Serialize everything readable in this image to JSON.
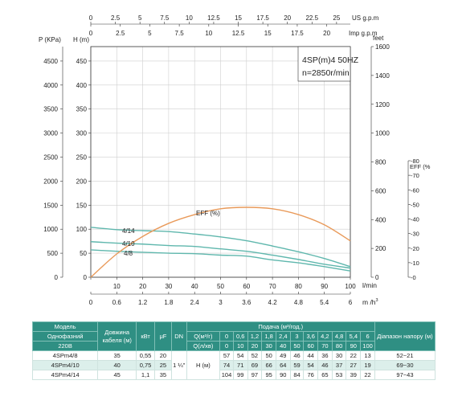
{
  "chart_data": {
    "type": "line",
    "title": "4SP(m)4  50HZ",
    "subtitle": "n=2850r/min",
    "x_axis_bottom": {
      "label": "l/min",
      "ticks": [
        0,
        10,
        20,
        30,
        40,
        50,
        60,
        70,
        80,
        90,
        100
      ],
      "range": [
        0,
        100
      ]
    },
    "x_axis_m3h": {
      "label": "m /h",
      "ticks": [
        "0",
        "0.6",
        "1.2",
        "1.8",
        "2.4",
        "3",
        "3.6",
        "4.2",
        "4.8",
        "5.4",
        "6"
      ]
    },
    "x_axis_us": {
      "label": "US g.p.m",
      "ticks": [
        "0",
        "2.5",
        "5",
        "7.5",
        "10",
        "12.5",
        "15",
        "17.5",
        "20",
        "22.5",
        "25"
      ]
    },
    "x_axis_imp": {
      "label": "Imp g.p.m",
      "ticks": [
        "0",
        "2.5",
        "5",
        "7.5",
        "10",
        "12.5",
        "15",
        "17.5",
        "20"
      ]
    },
    "y_axis_head": {
      "label": "H (m)",
      "ticks": [
        0,
        50,
        100,
        150,
        200,
        250,
        300,
        350,
        400,
        450
      ],
      "range": [
        0,
        480
      ]
    },
    "y_axis_pressure": {
      "label": "P (KPa)",
      "ticks": [
        0,
        500,
        1000,
        1500,
        2000,
        2500,
        3000,
        3500,
        4000,
        4500
      ]
    },
    "y_axis_feet": {
      "label": "feet",
      "ticks": [
        0,
        200,
        400,
        600,
        800,
        1000,
        1200,
        1400,
        1600
      ]
    },
    "y_axis_eff": {
      "label": "EFF (%",
      "ticks": [
        0,
        10,
        20,
        30,
        40,
        50,
        60,
        70,
        80
      ],
      "range": [
        0,
        80
      ]
    },
    "series": [
      {
        "name": "4/14",
        "x": [
          0,
          10,
          20,
          30,
          40,
          50,
          60,
          70,
          80,
          90,
          100
        ],
        "y": [
          104,
          99,
          97,
          95,
          90,
          84,
          76,
          65,
          53,
          39,
          22
        ],
        "color": "#5fb7ad"
      },
      {
        "name": "4/10",
        "x": [
          0,
          10,
          20,
          30,
          40,
          50,
          60,
          70,
          80,
          90,
          100
        ],
        "y": [
          74,
          71,
          69,
          66,
          64,
          59,
          54,
          46,
          37,
          27,
          19
        ],
        "color": "#5fb7ad"
      },
      {
        "name": "4/8",
        "x": [
          0,
          10,
          20,
          30,
          40,
          50,
          60,
          70,
          80,
          90,
          100
        ],
        "y": [
          57,
          54,
          52,
          50,
          49,
          46,
          44,
          36,
          30,
          22,
          13
        ],
        "color": "#5fb7ad"
      },
      {
        "name": "EFF (%)",
        "axis": "eff",
        "x": [
          0,
          10,
          20,
          30,
          40,
          50,
          60,
          70,
          80,
          90,
          100
        ],
        "y": [
          0,
          16,
          28,
          37,
          43,
          47,
          48,
          47,
          43,
          36,
          25
        ],
        "color": "#e99a5a"
      }
    ]
  },
  "table": {
    "h_model": "Модель",
    "h_cable": "Довжина кабеля (м)",
    "h_kw": "кВт",
    "h_uf": "μF",
    "h_dn": "DN",
    "h_flow": "Подача (м³/год.)",
    "h_range": "Діапазон напору (м)",
    "h_phase": "Однофазний",
    "h_volt": "220В",
    "q_m3_label": "Q(м³/г)",
    "q_min_label": "Q(л/хв)",
    "q_m3": [
      "0",
      "0,6",
      "1,2",
      "1,8",
      "2,4",
      "3",
      "3,6",
      "4,2",
      "4,8",
      "5,4",
      "6"
    ],
    "q_min": [
      "0",
      "10",
      "20",
      "30",
      "40",
      "50",
      "60",
      "70",
      "80",
      "90",
      "100"
    ],
    "dn_value": "1 ¼\"",
    "h_unit": "H (м)",
    "rows": [
      {
        "model": "4SPm4/8",
        "cable": "35",
        "kw": "0,55",
        "uf": "20",
        "h": [
          "57",
          "54",
          "52",
          "50",
          "49",
          "46",
          "44",
          "36",
          "30",
          "22",
          "13"
        ],
        "range": "52~21"
      },
      {
        "model": "4SPm4/10",
        "cable": "40",
        "kw": "0,75",
        "uf": "25",
        "h": [
          "74",
          "71",
          "69",
          "66",
          "64",
          "59",
          "54",
          "46",
          "37",
          "27",
          "19"
        ],
        "range": "69~30"
      },
      {
        "model": "4SPm4/14",
        "cable": "45",
        "kw": "1,1",
        "uf": "35",
        "h": [
          "104",
          "99",
          "97",
          "95",
          "90",
          "84",
          "76",
          "65",
          "53",
          "39",
          "22"
        ],
        "range": "97~43"
      }
    ]
  }
}
